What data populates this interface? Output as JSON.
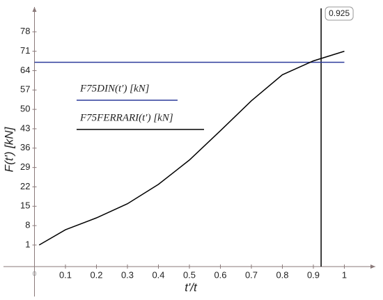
{
  "chart_data": {
    "type": "line",
    "xlabel": "t'/t",
    "ylabel": "F(t') [kN]",
    "xlim": [
      -0.1,
      1.1
    ],
    "ylim": [
      -6.8,
      87
    ],
    "xticks": [
      0,
      0.1,
      0.2,
      0.3,
      0.4,
      0.5,
      0.6,
      0.7,
      0.8,
      0.9,
      1
    ],
    "yticks": [
      1,
      8,
      15,
      22,
      29,
      36,
      43,
      50,
      57,
      64,
      71,
      78
    ],
    "series": [
      {
        "name": "F75DIN(t′) [kN]",
        "color": "#2b3a9a",
        "x": [
          0,
          1
        ],
        "values": [
          67,
          67
        ]
      },
      {
        "name": "F75FERRARI(t′) [kN]",
        "color": "#000000",
        "x": [
          0.015,
          0.1,
          0.2,
          0.3,
          0.4,
          0.5,
          0.6,
          0.7,
          0.8,
          0.9,
          1.0
        ],
        "values": [
          1,
          6.5,
          10.8,
          15.9,
          22.9,
          31.7,
          42.3,
          53.1,
          62.5,
          67.5,
          71
        ]
      }
    ],
    "marker": {
      "value": 0.925,
      "label": "0.925"
    }
  }
}
